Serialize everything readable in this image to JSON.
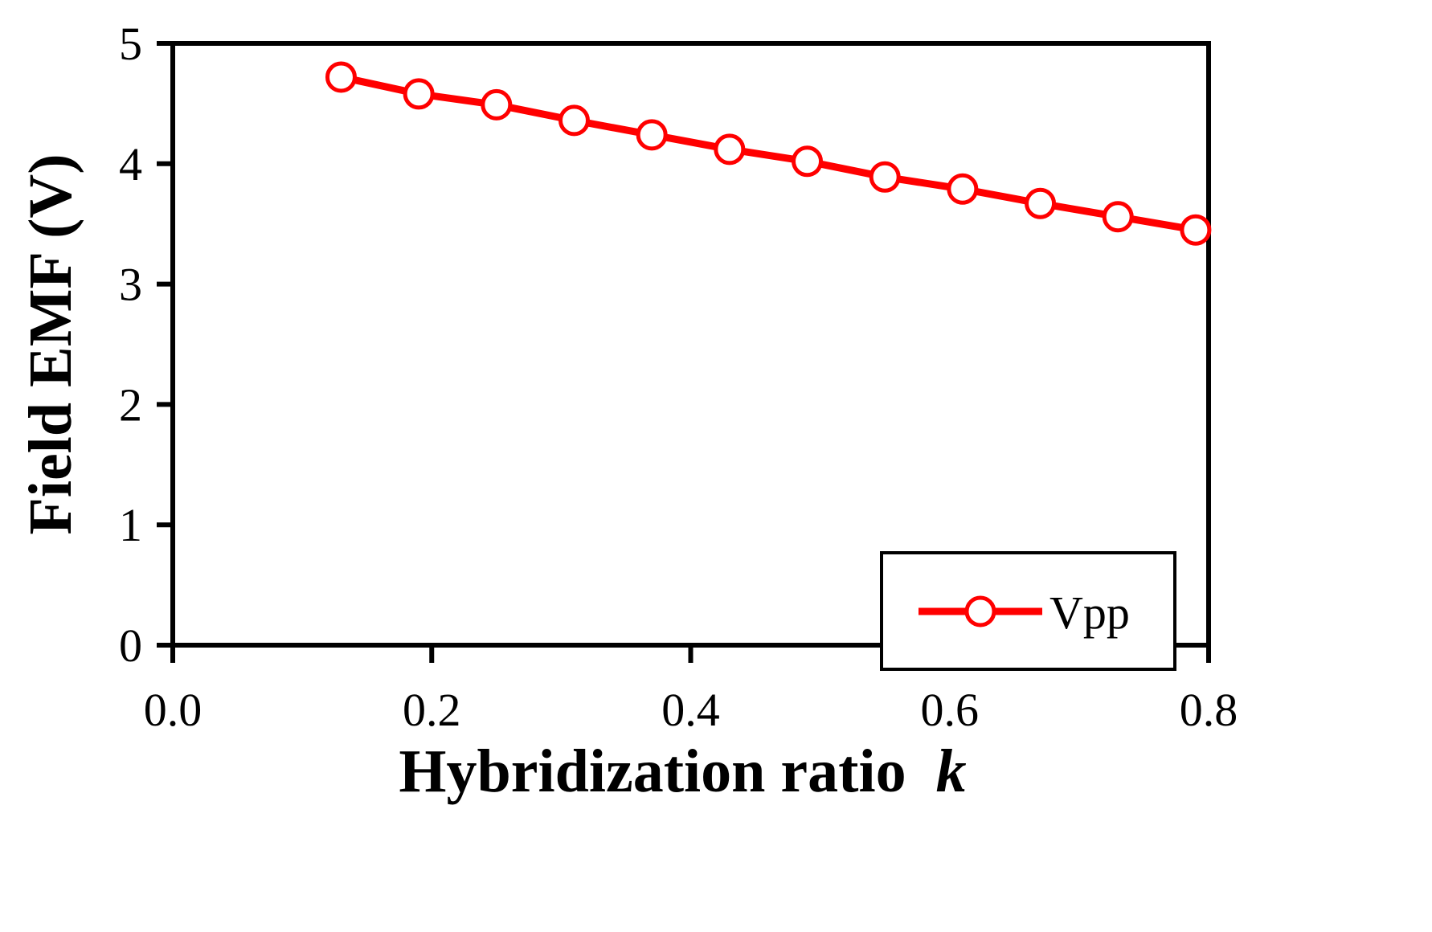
{
  "chart_data": {
    "type": "line",
    "title": "",
    "xlabel": "Hybridization ratio",
    "xlabel_var": "k",
    "ylabel": "Field EMF (V)",
    "xlim": [
      0.0,
      0.8
    ],
    "ylim": [
      0,
      5
    ],
    "xticks": [
      0.0,
      0.2,
      0.4,
      0.6,
      0.8
    ],
    "xtick_labels": [
      "0.0",
      "0.2",
      "0.4",
      "0.6",
      "0.8"
    ],
    "yticks": [
      0,
      1,
      2,
      3,
      4,
      5
    ],
    "ytick_labels": [
      "0",
      "1",
      "2",
      "3",
      "4",
      "5"
    ],
    "grid": false,
    "legend_position": "bottom-right",
    "series": [
      {
        "name": "Vpp",
        "color": "#ff0000",
        "marker": "open-circle",
        "x": [
          0.13,
          0.19,
          0.25,
          0.31,
          0.37,
          0.43,
          0.49,
          0.55,
          0.61,
          0.67,
          0.73,
          0.79
        ],
        "y": [
          4.72,
          4.58,
          4.49,
          4.36,
          4.24,
          4.12,
          4.02,
          3.89,
          3.79,
          3.67,
          3.56,
          3.45
        ]
      }
    ]
  }
}
